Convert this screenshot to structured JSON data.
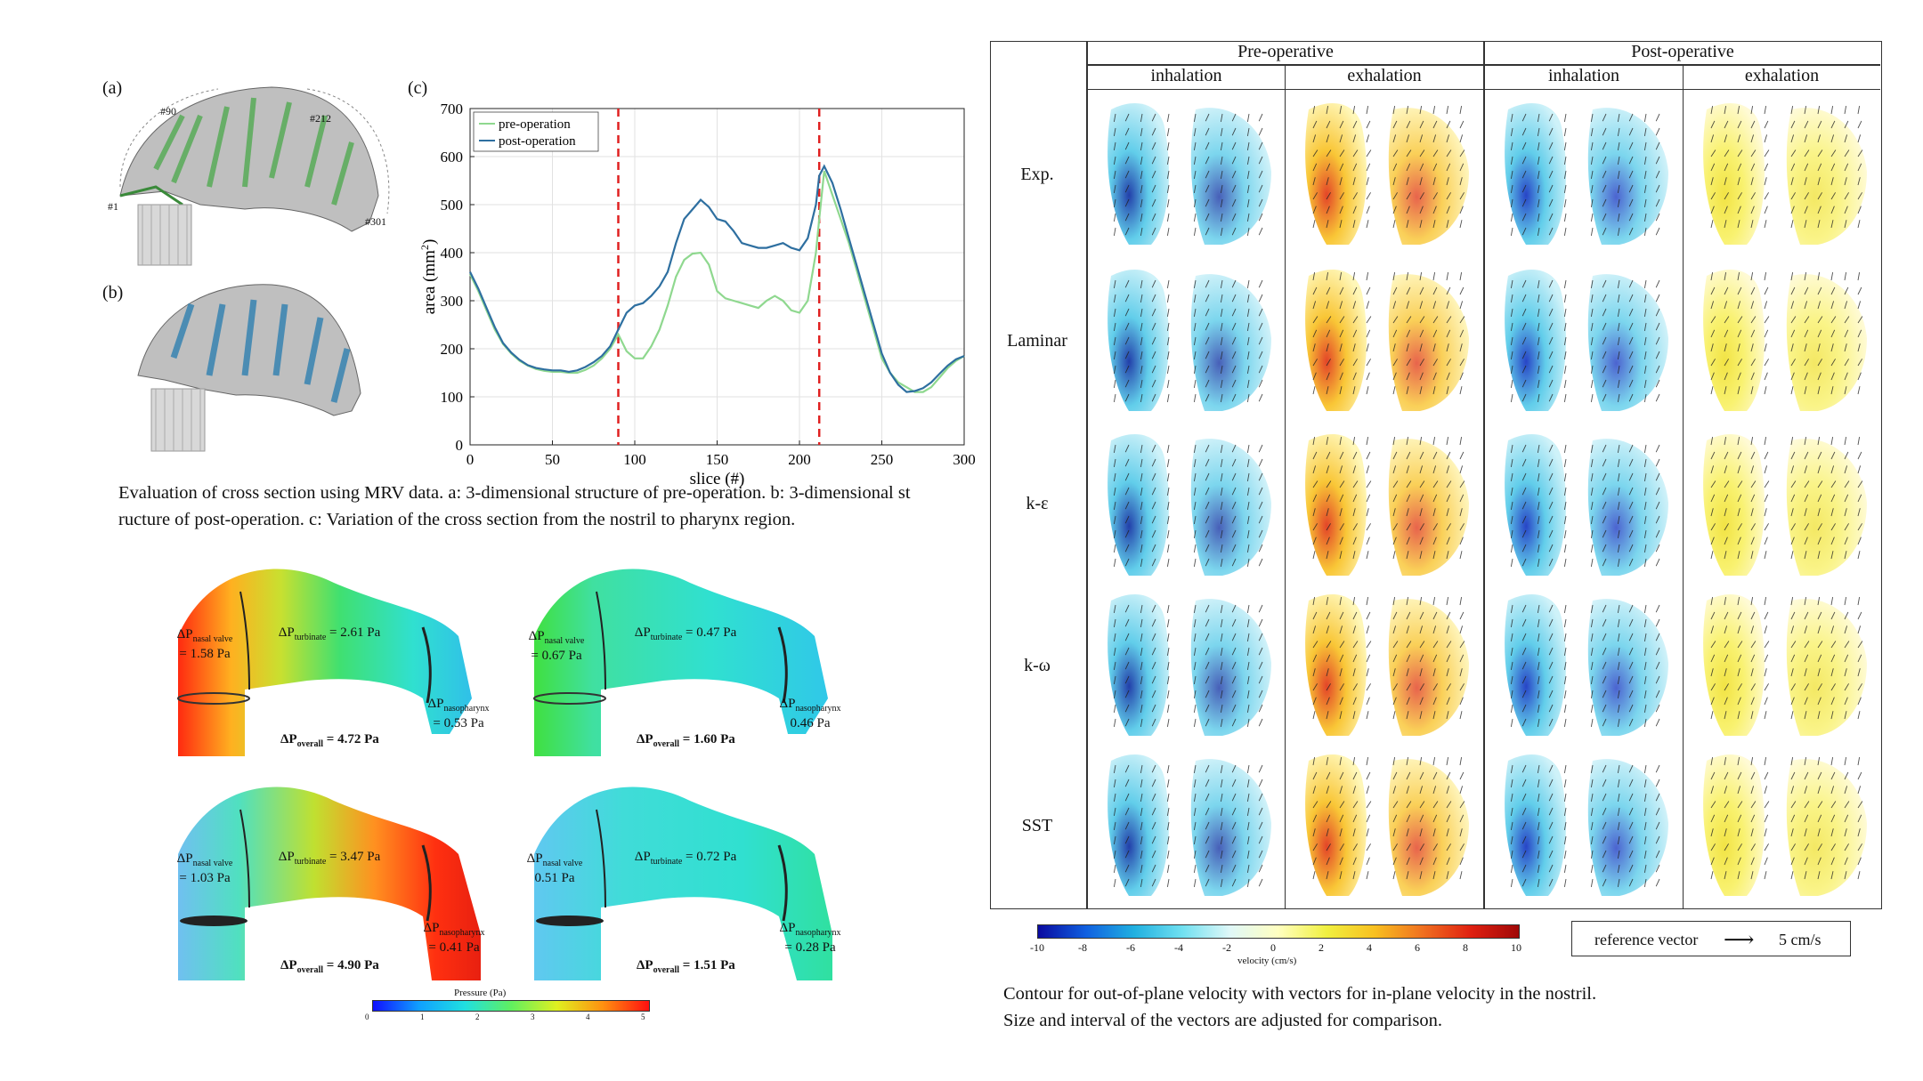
{
  "panel_labels": {
    "a": "(a)",
    "b": "(b)",
    "c": "(c)"
  },
  "slice_markers": [
    "#90",
    "#212",
    "#1",
    "#301"
  ],
  "chart_data": {
    "type": "line",
    "xlabel": "slice (#)",
    "ylabel": "area (mm",
    "ylabel_sup": "2",
    "ylabel_tail": ")",
    "xlim": [
      0,
      300
    ],
    "ylim": [
      0,
      700
    ],
    "xticks": [
      "0",
      "50",
      "100",
      "150",
      "200",
      "250",
      "300"
    ],
    "yticks": [
      "0",
      "100",
      "200",
      "300",
      "400",
      "500",
      "600",
      "700"
    ],
    "grid": true,
    "legend_position": "top-left",
    "vlines": [
      90,
      212
    ],
    "x": [
      0,
      5,
      10,
      15,
      20,
      25,
      30,
      35,
      40,
      45,
      50,
      55,
      60,
      65,
      70,
      75,
      80,
      85,
      90,
      95,
      100,
      105,
      110,
      115,
      120,
      125,
      130,
      135,
      140,
      145,
      150,
      155,
      160,
      165,
      170,
      175,
      180,
      185,
      190,
      195,
      200,
      205,
      210,
      212,
      215,
      220,
      225,
      230,
      235,
      240,
      245,
      250,
      255,
      260,
      265,
      270,
      275,
      280,
      285,
      290,
      295,
      300
    ],
    "series": [
      {
        "name": "pre-operation",
        "color": "#8fd88f",
        "values": [
          355,
          320,
          280,
          240,
          210,
          190,
          175,
          165,
          158,
          154,
          152,
          152,
          150,
          150,
          156,
          165,
          180,
          200,
          230,
          195,
          180,
          180,
          205,
          240,
          290,
          350,
          385,
          398,
          400,
          375,
          320,
          305,
          300,
          295,
          290,
          285,
          300,
          310,
          300,
          280,
          275,
          300,
          400,
          470,
          570,
          520,
          470,
          420,
          360,
          300,
          240,
          180,
          150,
          130,
          120,
          110,
          110,
          120,
          140,
          160,
          175,
          185
        ]
      },
      {
        "name": "post-operation",
        "color": "#2e6fa0",
        "values": [
          360,
          325,
          285,
          245,
          212,
          192,
          177,
          166,
          160,
          157,
          155,
          155,
          152,
          155,
          162,
          172,
          185,
          205,
          240,
          275,
          290,
          295,
          310,
          330,
          360,
          420,
          470,
          490,
          510,
          495,
          470,
          465,
          445,
          420,
          415,
          410,
          410,
          415,
          420,
          410,
          405,
          430,
          500,
          560,
          580,
          545,
          490,
          430,
          370,
          310,
          250,
          190,
          150,
          125,
          110,
          112,
          118,
          130,
          148,
          165,
          178,
          185
        ]
      }
    ]
  },
  "caption_left": {
    "line1": "Evaluation of cross section using MRV data. a: 3-dimensional structure of pre-operation. b: 3-dimensional st",
    "line2": "ructure of post-operation. c: Variation of the cross section from the nostril to pharynx region."
  },
  "pressure_panels": [
    {
      "nv_label": "ΔP",
      "nv_sub": "nasal valve",
      "nv_val": "= 1.58 Pa",
      "tb_label": "ΔP",
      "tb_sub": "turbinate",
      "tb_val": " = 2.61 Pa",
      "np_label": "ΔP",
      "np_sub": "nasopharynx",
      "np_val": "= 0.53 Pa",
      "ov_label": "ΔP",
      "ov_sub": "overall",
      "ov_val": " = 4.72 Pa"
    },
    {
      "nv_label": "ΔP",
      "nv_sub": "nasal valve",
      "nv_val": "= 0.67 Pa",
      "tb_label": "ΔP",
      "tb_sub": "turbinate",
      "tb_val": " = 0.47 Pa",
      "np_label": "ΔP",
      "np_sub": "nasopharynx",
      "np_val": "0.46 Pa",
      "ov_label": "ΔP",
      "ov_sub": "overall",
      "ov_val": " = 1.60 Pa"
    },
    {
      "nv_label": "ΔP",
      "nv_sub": "nasal valve",
      "nv_val": "= 1.03 Pa",
      "tb_label": "ΔP",
      "tb_sub": "turbinate",
      "tb_val": " = 3.47 Pa",
      "np_label": "ΔP",
      "np_sub": "nasopharynx",
      "np_val": "= 0.41 Pa",
      "ov_label": "ΔP",
      "ov_sub": "overall",
      "ov_val": " = 4.90 Pa"
    },
    {
      "nv_label": "ΔP",
      "nv_sub": "nasal valve",
      "nv_val": "0.51 Pa",
      "tb_label": "ΔP",
      "tb_sub": "turbinate",
      "tb_val": " = 0.72 Pa",
      "np_label": "ΔP",
      "np_sub": "nasopharynx",
      "np_val": "= 0.28 Pa",
      "ov_label": "ΔP",
      "ov_sub": "overall",
      "ov_val": " = 1.51 Pa"
    }
  ],
  "pressure_bar": {
    "title": "Pressure (Pa)",
    "ticks": [
      "0",
      "1",
      "2",
      "3",
      "4",
      "5"
    ]
  },
  "table": {
    "groups": [
      "Pre-operative",
      "Post-operative"
    ],
    "phases": [
      "inhalation",
      "exhalation",
      "inhalation",
      "exhalation"
    ],
    "rows": [
      "Exp.",
      "Laminar",
      "k-ε",
      "k-ω",
      "SST"
    ]
  },
  "velocity_bar": {
    "ticks": [
      "-10",
      "-8",
      "-6",
      "-4",
      "-2",
      "0",
      "2",
      "4",
      "6",
      "8",
      "10"
    ],
    "title": "velocity (cm/s)"
  },
  "reference_vector": {
    "label": "reference vector",
    "arrow": "⟶",
    "value": "5 cm/s"
  },
  "caption_right": {
    "line1": "Contour for out-of-plane velocity with vectors for in-plane velocity in the nostril.",
    "line2": "Size and interval of the vectors are adjusted for comparison."
  },
  "colors": {
    "pre": "#8fd88f",
    "post": "#2e6fa0",
    "marker": "#e02020"
  }
}
